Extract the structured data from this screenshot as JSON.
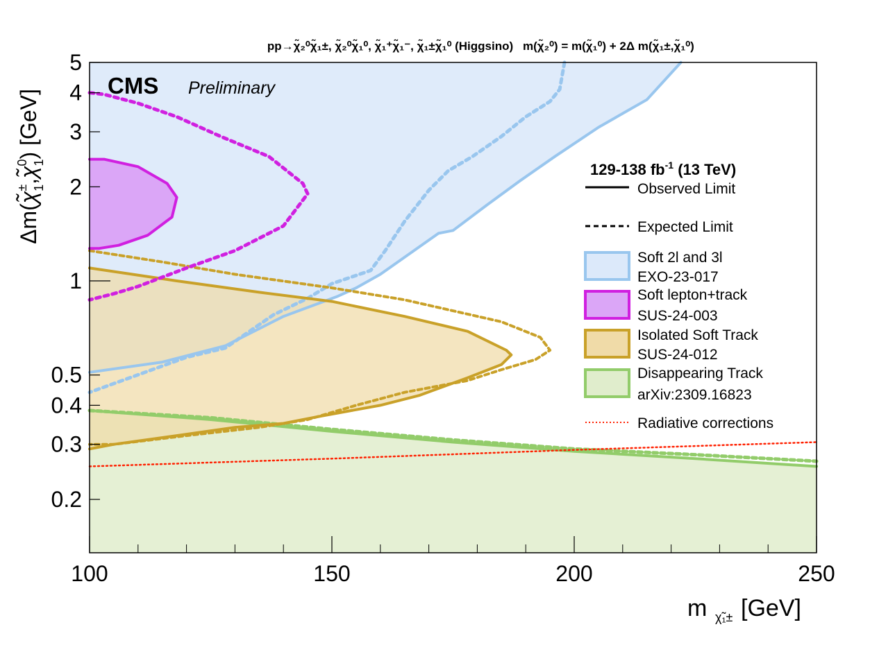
{
  "chart_data": {
    "type": "area",
    "title": {
      "process": "pp→χ̃₂⁰χ̃₁±,   χ̃₂⁰χ̃₁⁰,   χ̃₁⁺χ̃₁⁻,   χ̃₁±χ̃₁⁰ (Higgsino)",
      "assumption": "m(χ̃₂⁰) = m(χ̃₁⁰) + 2Δ m(χ̃₁±,χ̃₁⁰)"
    },
    "experiment": "CMS",
    "status": "Preliminary",
    "xlabel": "m",
    "xlabel_subscript": "χ̃₁±",
    "xlabel_unit": "[GeV]",
    "ylabel": "Δm(χ̃₁±,χ̃₁⁰) [GeV]",
    "x_scale": "linear",
    "y_scale": "log",
    "xlim": [
      100,
      250
    ],
    "ylim": [
      0.135,
      5
    ],
    "x_ticks": [
      "100",
      "150",
      "200",
      "250"
    ],
    "y_ticks": [
      "0.2",
      "0.3",
      "0.4",
      "0.5",
      "1",
      "2",
      "3",
      "4",
      "5"
    ],
    "y_tick_values": [
      0.2,
      0.3,
      0.4,
      0.5,
      1,
      2,
      3,
      4,
      5
    ],
    "legend": {
      "placement": "right",
      "lumi": "129-138 fb",
      "lumi_exp": "-1",
      "energy": "(13 TeV)",
      "observed": "Observed Limit",
      "expected": "Expected Limit",
      "radiative": "Radiative corrections",
      "entries": [
        {
          "name1": "Soft 2l and 3l",
          "name2": "EXO-23-017",
          "line": "#99c6ee",
          "fill": "#dce9fa"
        },
        {
          "name1": "Soft lepton+track",
          "name2": "SUS-24-003",
          "line": "#d020e0",
          "fill": "#dba6f7"
        },
        {
          "name1": "Isolated Soft Track",
          "name2": "SUS-24-012",
          "line": "#c9a129",
          "fill": "#f0dba8"
        },
        {
          "name1": "Disappearing Track",
          "name2": "arXiv:2309.16823",
          "line": "#92cc6a",
          "fill": "#e0edcc"
        }
      ]
    },
    "series": [
      {
        "name": "Soft 2l and 3l",
        "color": "#99c6ee",
        "fill": "#dce9fa",
        "observed": [
          [
            100,
            5
          ],
          [
            222,
            5
          ],
          [
            215,
            3.8
          ],
          [
            205,
            3.1
          ],
          [
            196,
            2.5
          ],
          [
            189,
            2.1
          ],
          [
            182,
            1.75
          ],
          [
            175,
            1.45
          ],
          [
            172,
            1.42
          ],
          [
            160,
            1.05
          ],
          [
            155,
            0.95
          ],
          [
            151,
            0.89
          ],
          [
            140,
            0.77
          ],
          [
            128,
            0.62
          ],
          [
            115,
            0.55
          ],
          [
            100,
            0.51
          ]
        ],
        "expected": [
          [
            198,
            5
          ],
          [
            197,
            4.1
          ],
          [
            195,
            3.75
          ],
          [
            190,
            3.35
          ],
          [
            185,
            2.9
          ],
          [
            179,
            2.5
          ],
          [
            174,
            2.25
          ],
          [
            170,
            1.95
          ],
          [
            165,
            1.55
          ],
          [
            161,
            1.25
          ],
          [
            158,
            1.08
          ],
          [
            150,
            0.98
          ],
          [
            145,
            0.88
          ],
          [
            138,
            0.78
          ],
          [
            128,
            0.61
          ],
          [
            120,
            0.57
          ],
          [
            100,
            0.44
          ]
        ]
      },
      {
        "name": "Soft lepton+track",
        "color": "#d020e0",
        "fill": "#dba6f7",
        "observed": [
          [
            100,
            2.45
          ],
          [
            103,
            2.45
          ],
          [
            110,
            2.32
          ],
          [
            116,
            2.05
          ],
          [
            118,
            1.85
          ],
          [
            117,
            1.6
          ],
          [
            112,
            1.4
          ],
          [
            106,
            1.3
          ],
          [
            102,
            1.27
          ],
          [
            100,
            1.27
          ]
        ],
        "expected": [
          [
            100,
            4
          ],
          [
            103,
            3.95
          ],
          [
            110,
            3.7
          ],
          [
            118,
            3.35
          ],
          [
            127,
            2.9
          ],
          [
            137,
            2.5
          ],
          [
            144,
            2.05
          ],
          [
            145,
            1.9
          ],
          [
            140,
            1.5
          ],
          [
            130,
            1.25
          ],
          [
            120,
            1.1
          ],
          [
            110,
            0.96
          ],
          [
            105,
            0.91
          ],
          [
            100,
            0.87
          ]
        ]
      },
      {
        "name": "Isolated Soft Track",
        "color": "#c9a129",
        "fill": "#f0dba8",
        "observed": [
          [
            100,
            1.1
          ],
          [
            118,
            1.0
          ],
          [
            135,
            0.92
          ],
          [
            150,
            0.86
          ],
          [
            165,
            0.77
          ],
          [
            178,
            0.69
          ],
          [
            186,
            0.6
          ],
          [
            187,
            0.58
          ],
          [
            185,
            0.54
          ],
          [
            178,
            0.49
          ],
          [
            168,
            0.43
          ],
          [
            160,
            0.4
          ],
          [
            148,
            0.37
          ],
          [
            140,
            0.35
          ],
          [
            130,
            0.34
          ],
          [
            118,
            0.32
          ],
          [
            105,
            0.3
          ],
          [
            100,
            0.29
          ]
        ],
        "expected": [
          [
            100,
            1.25
          ],
          [
            115,
            1.15
          ],
          [
            130,
            1.05
          ],
          [
            150,
            0.95
          ],
          [
            165,
            0.87
          ],
          [
            185,
            0.74
          ],
          [
            193,
            0.66
          ],
          [
            195,
            0.6
          ],
          [
            192,
            0.56
          ],
          [
            185,
            0.52
          ],
          [
            178,
            0.48
          ],
          [
            165,
            0.44
          ],
          [
            155,
            0.4
          ],
          [
            145,
            0.36
          ],
          [
            135,
            0.34
          ],
          [
            120,
            0.32
          ],
          [
            105,
            0.3
          ],
          [
            100,
            0.3
          ]
        ]
      },
      {
        "name": "Disappearing Track",
        "color": "#92cc6a",
        "fill": "#e0edcc",
        "observed": [
          [
            100,
            0.385
          ],
          [
            125,
            0.36
          ],
          [
            150,
            0.33
          ],
          [
            175,
            0.305
          ],
          [
            200,
            0.285
          ],
          [
            225,
            0.27
          ],
          [
            250,
            0.255
          ]
        ],
        "expected": [
          [
            100,
            0.385
          ],
          [
            125,
            0.365
          ],
          [
            150,
            0.335
          ],
          [
            175,
            0.31
          ],
          [
            200,
            0.29
          ],
          [
            225,
            0.278
          ],
          [
            250,
            0.265
          ]
        ]
      },
      {
        "name": "Radiative corrections",
        "color": "#ff2000",
        "values": [
          [
            100,
            0.255
          ],
          [
            150,
            0.27
          ],
          [
            200,
            0.288
          ],
          [
            250,
            0.305
          ]
        ]
      }
    ]
  }
}
